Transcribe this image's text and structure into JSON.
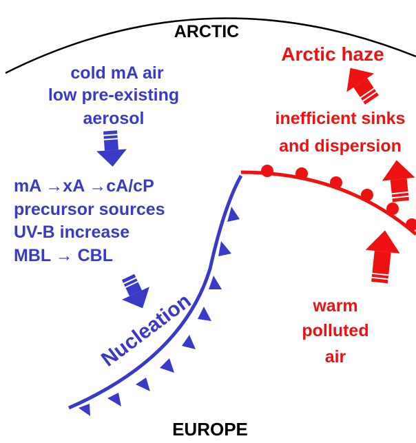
{
  "labels": {
    "north": "ARCTIC",
    "south": "EUROPE",
    "haze": "Arctic haze",
    "cold_air": [
      "cold mA air",
      "low pre-existing",
      "aerosol"
    ],
    "sinks": [
      "inefficient sinks",
      "and dispersion"
    ],
    "processes": [
      "mA →xA →cA/cP",
      "precursor sources",
      "UV-B increase",
      "MBL → CBL"
    ],
    "front": "Nucleation",
    "warm_air": [
      "warm",
      "polluted",
      "air"
    ]
  }
}
